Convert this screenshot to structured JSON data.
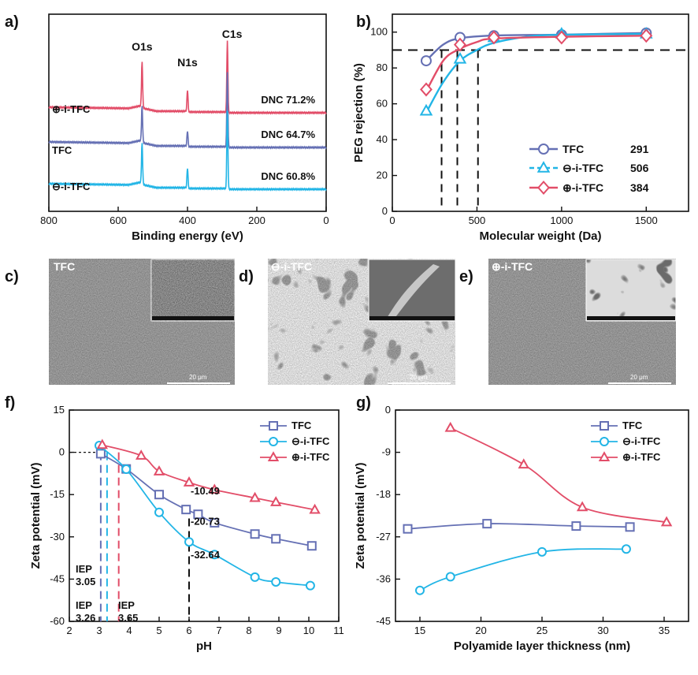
{
  "colors": {
    "tfc": "#6570b4",
    "neg": "#22b5e6",
    "pos": "#e24d68",
    "dash": "#111111"
  },
  "panels": {
    "a": "a)",
    "b": "b)",
    "c": "c)",
    "d": "d)",
    "e": "e)",
    "f": "f)",
    "g": "g)"
  },
  "sem": {
    "c": {
      "label": "TFC",
      "scale": "20 μm"
    },
    "d": {
      "label": "⊖-i-TFC",
      "scale": "20 μm"
    },
    "e": {
      "label": "⊕-i-TFC",
      "scale": "20 μm"
    }
  },
  "chart_data": [
    {
      "id": "a",
      "type": "line",
      "xlabel": "Binding energy (eV)",
      "ylabel": "",
      "xlim": [
        800,
        0
      ],
      "x_reversed": true,
      "xticks": [
        800,
        600,
        400,
        200,
        0
      ],
      "peaks": [
        {
          "label": "O1s",
          "x": 531
        },
        {
          "label": "N1s",
          "x": 400
        },
        {
          "label": "C1s",
          "x": 285
        }
      ],
      "series": [
        {
          "name": "⊕-i-TFC",
          "annotation": "DNC 71.2%",
          "color": "#e24d68"
        },
        {
          "name": "TFC",
          "annotation": "DNC 64.7%",
          "color": "#6570b4"
        },
        {
          "name": "⊖-i-TFC",
          "annotation": "DNC 60.8%",
          "color": "#22b5e6"
        }
      ]
    },
    {
      "id": "b",
      "type": "line",
      "xlabel": "Molecular weight (Da)",
      "ylabel": "PEG rejection (%)",
      "xlim": [
        0,
        1750
      ],
      "ylim": [
        0,
        110
      ],
      "xticks": [
        0,
        500,
        1000,
        1500
      ],
      "yticks": [
        0,
        20,
        40,
        60,
        80,
        100
      ],
      "threshold": 90,
      "series": [
        {
          "name": "TFC",
          "mwco": "291",
          "color": "#6570b4",
          "marker": "circle",
          "x": [
            200,
            400,
            600,
            1000,
            1500
          ],
          "y": [
            84,
            97,
            98,
            98.5,
            99.5
          ],
          "fit": [
            [
              200,
              84
            ],
            [
              300,
              93
            ],
            [
              400,
              96.6
            ],
            [
              600,
              98.1
            ],
            [
              1000,
              98.6
            ],
            [
              1500,
              99.5
            ]
          ]
        },
        {
          "name": "⊖-i-TFC",
          "mwco": "506",
          "color": "#22b5e6",
          "marker": "triangle",
          "x": [
            200,
            400,
            600,
            1000,
            1500
          ],
          "y": [
            56,
            85,
            97,
            99,
            99
          ],
          "fit": [
            [
              200,
              55
            ],
            [
              300,
              72
            ],
            [
              400,
              84
            ],
            [
              500,
              90
            ],
            [
              600,
              94
            ],
            [
              800,
              97.5
            ],
            [
              1000,
              98.5
            ],
            [
              1500,
              99
            ]
          ]
        },
        {
          "name": "⊕-i-TFC",
          "mwco": "384",
          "color": "#e24d68",
          "marker": "diamond",
          "x": [
            200,
            400,
            600,
            1000,
            1500
          ],
          "y": [
            68,
            93,
            97,
            97,
            98
          ],
          "fit": [
            [
              200,
              67
            ],
            [
              300,
              84
            ],
            [
              384,
              90
            ],
            [
              500,
              94.5
            ],
            [
              600,
              96.4
            ],
            [
              1000,
              97.4
            ],
            [
              1500,
              98
            ]
          ]
        }
      ],
      "mwco_lines": [
        291,
        384,
        506
      ]
    },
    {
      "id": "f",
      "type": "line",
      "xlabel": "pH",
      "ylabel": "Zeta potential (mV)",
      "xlim": [
        2,
        11
      ],
      "ylim": [
        -60,
        15
      ],
      "xticks": [
        2,
        3,
        4,
        5,
        6,
        7,
        8,
        9,
        10,
        11
      ],
      "yticks": [
        15,
        0,
        -15,
        -30,
        -45,
        -60
      ],
      "series": [
        {
          "name": "TFC",
          "color": "#6570b4",
          "marker": "square",
          "x": [
            3.05,
            3.9,
            5.0,
            5.9,
            6.3,
            6.85,
            8.2,
            8.9,
            10.1
          ],
          "y": [
            -0.5,
            -5.9,
            -15,
            -20.3,
            -22,
            -25,
            -29,
            -30.7,
            -33.2
          ],
          "iep": "3.05",
          "iep_x": 3.05,
          "annotation": "-20.73",
          "annotation_x": 6.0,
          "annotation_y": -20.73
        },
        {
          "name": "⊖-i-TFC",
          "color": "#22b5e6",
          "marker": "circle",
          "x": [
            3.0,
            3.9,
            5.0,
            6.0,
            6.85,
            8.2,
            8.9,
            10.05
          ],
          "y": [
            2.4,
            -6.0,
            -21.3,
            -31.8,
            -36.3,
            -44.3,
            -46,
            -47.3
          ],
          "iep": "3.26",
          "iep_x": 3.26,
          "annotation": "-32.64",
          "annotation_x": 6.0,
          "annotation_y": -32.64
        },
        {
          "name": "⊕-i-TFC",
          "color": "#e24d68",
          "marker": "triangle",
          "x": [
            3.1,
            4.4,
            5.0,
            6.0,
            6.85,
            8.2,
            8.9,
            10.2
          ],
          "y": [
            2.6,
            -1.2,
            -6.8,
            -10.7,
            -13.3,
            -16.2,
            -17.7,
            -20.4
          ],
          "iep": "3.65",
          "iep_x": 3.65,
          "annotation": "-10.49",
          "annotation_x": 6.0,
          "annotation_y": -10.49
        }
      ],
      "iep_label": "IEP",
      "ph6_line": 6
    },
    {
      "id": "g",
      "type": "line",
      "xlabel": "Polyamide layer thickness (nm)",
      "ylabel": "Zeta potential (mV)",
      "xlim": [
        13,
        37
      ],
      "ylim": [
        -45,
        0
      ],
      "xticks": [
        15,
        20,
        25,
        30,
        35
      ],
      "yticks": [
        0,
        -9,
        -18,
        -27,
        -36,
        -45
      ],
      "series": [
        {
          "name": "TFC",
          "color": "#6570b4",
          "marker": "square",
          "x": [
            14,
            20.5,
            27.8,
            32.2
          ],
          "y": [
            -25.3,
            -24.2,
            -24.7,
            -24.9
          ]
        },
        {
          "name": "⊖-i-TFC",
          "color": "#22b5e6",
          "marker": "circle",
          "x": [
            15,
            17.5,
            25,
            31.9
          ],
          "y": [
            -38.4,
            -35.5,
            -30.2,
            -29.6
          ]
        },
        {
          "name": "⊕-i-TFC",
          "color": "#e24d68",
          "marker": "triangle",
          "x": [
            17.5,
            23.5,
            28.3,
            35.2
          ],
          "y": [
            -3.8,
            -11.6,
            -20.7,
            -23.9
          ]
        }
      ]
    }
  ]
}
